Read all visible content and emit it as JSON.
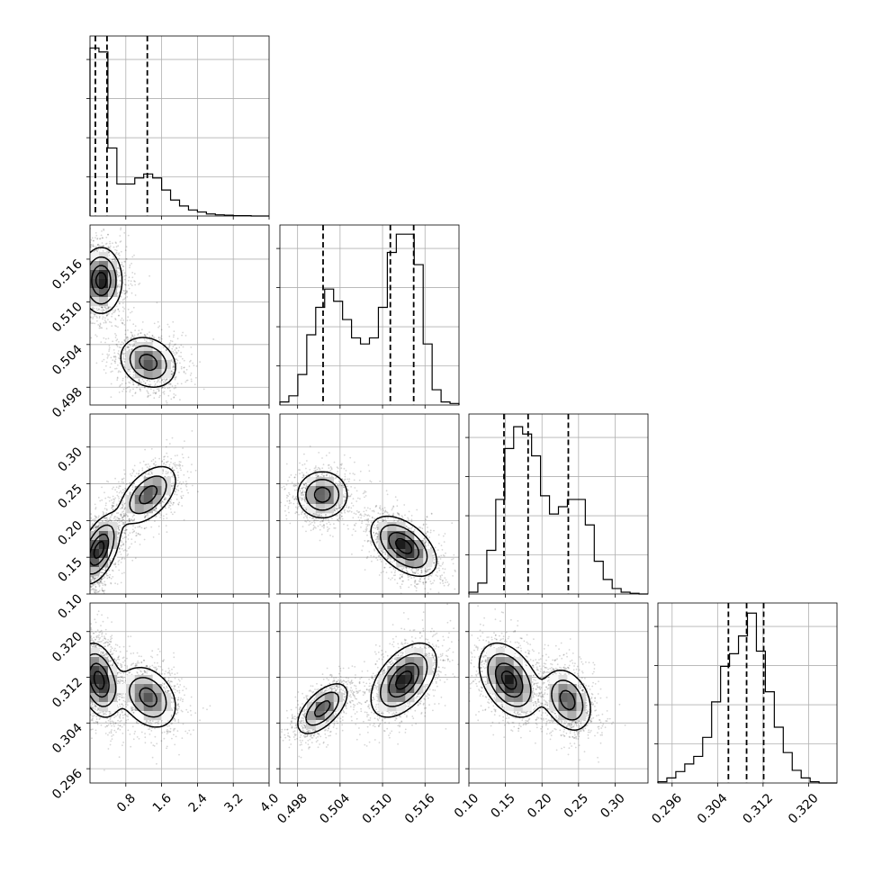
{
  "chart_data": {
    "type": "corner",
    "grid": true,
    "parameters": [
      {
        "range": [
          0.0,
          4.0
        ],
        "ticks": [
          0.8,
          1.6,
          2.4,
          3.2,
          4.0
        ],
        "tick_labels": [
          "0.8",
          "1.6",
          "2.4",
          "3.2",
          "4.0"
        ],
        "quantiles": [
          0.12,
          0.38,
          1.28
        ],
        "hist": [
          4.2,
          4.1,
          1.7,
          0.8,
          0.8,
          0.95,
          1.05,
          0.95,
          0.65,
          0.4,
          0.25,
          0.15,
          0.1,
          0.05,
          0.03,
          0.02,
          0.01,
          0.01,
          0.0,
          0.0
        ],
        "hist_max": 4.5
      },
      {
        "range": [
          0.4955,
          0.5208
        ],
        "ticks": [
          0.498,
          0.504,
          0.51,
          0.516
        ],
        "tick_labels": [
          "0.498",
          "0.504",
          "0.510",
          "0.516"
        ],
        "quantiles": [
          0.5016,
          0.5111,
          0.5144
        ],
        "hist": [
          0.1,
          0.3,
          1.0,
          2.3,
          3.2,
          3.8,
          3.4,
          2.8,
          2.2,
          2.0,
          2.2,
          3.2,
          5.0,
          5.6,
          5.6,
          4.6,
          2.0,
          0.5,
          0.1,
          0.05
        ],
        "hist_max": 5.9
      },
      {
        "range": [
          0.1,
          0.345
        ],
        "ticks": [
          0.1,
          0.15,
          0.2,
          0.25,
          0.3
        ],
        "tick_labels": [
          "0.10",
          "0.15",
          "0.20",
          "0.25",
          "0.30"
        ],
        "quantiles": [
          0.148,
          0.181,
          0.236
        ],
        "hist": [
          0.05,
          0.3,
          1.2,
          2.6,
          4.0,
          4.6,
          4.4,
          3.8,
          2.7,
          2.2,
          2.4,
          2.6,
          2.6,
          1.9,
          0.9,
          0.4,
          0.15,
          0.05,
          0.02,
          0.0
        ],
        "hist_max": 4.95
      },
      {
        "range": [
          0.2935,
          0.325
        ],
        "ticks": [
          0.296,
          0.304,
          0.312,
          0.32
        ],
        "tick_labels": [
          "0.296",
          "0.304",
          "0.312",
          "0.320"
        ],
        "quantiles": [
          0.3059,
          0.3091,
          0.3121
        ],
        "hist": [
          0.05,
          0.2,
          0.45,
          0.75,
          1.05,
          1.8,
          3.2,
          4.6,
          5.1,
          5.8,
          6.7,
          5.2,
          3.6,
          2.2,
          1.2,
          0.5,
          0.2,
          0.05,
          0.0,
          0.0
        ],
        "hist_max": 7.1
      }
    ],
    "pairs": [
      {
        "row": 1,
        "col": 0,
        "clusters": [
          {
            "mx": 0.25,
            "my": 0.513,
            "sx": 0.25,
            "sy": 0.0025,
            "rho": 0.0,
            "w": 0.55,
            "cut": 0.0
          },
          {
            "mx": 1.3,
            "my": 0.5015,
            "sx": 0.35,
            "sy": 0.002,
            "rho": -0.2,
            "w": 0.45
          }
        ]
      },
      {
        "row": 2,
        "col": 0,
        "clusters": [
          {
            "mx": 0.2,
            "my": 0.16,
            "sx": 0.25,
            "sy": 0.025,
            "rho": 0.5,
            "w": 0.55,
            "cut": 0.0
          },
          {
            "mx": 1.3,
            "my": 0.235,
            "sx": 0.35,
            "sy": 0.022,
            "rho": 0.5,
            "w": 0.45
          }
        ]
      },
      {
        "row": 2,
        "col": 1,
        "clusters": [
          {
            "mx": 0.5015,
            "my": 0.235,
            "sx": 0.002,
            "sy": 0.018,
            "rho": 0.0,
            "w": 0.45
          },
          {
            "mx": 0.513,
            "my": 0.165,
            "sx": 0.0025,
            "sy": 0.022,
            "rho": -0.5,
            "w": 0.55
          }
        ]
      },
      {
        "row": 3,
        "col": 0,
        "clusters": [
          {
            "mx": 0.2,
            "my": 0.3115,
            "sx": 0.25,
            "sy": 0.0035,
            "rho": -0.3,
            "w": 0.55,
            "cut": 0.0
          },
          {
            "mx": 1.3,
            "my": 0.3085,
            "sx": 0.35,
            "sy": 0.003,
            "rho": -0.3,
            "w": 0.45
          }
        ]
      },
      {
        "row": 3,
        "col": 1,
        "clusters": [
          {
            "mx": 0.5015,
            "my": 0.3065,
            "sx": 0.002,
            "sy": 0.0025,
            "rho": 0.6,
            "w": 0.45
          },
          {
            "mx": 0.513,
            "my": 0.3115,
            "sx": 0.0025,
            "sy": 0.0035,
            "rho": 0.5,
            "w": 0.55
          }
        ]
      },
      {
        "row": 3,
        "col": 2,
        "clusters": [
          {
            "mx": 0.155,
            "my": 0.3115,
            "sx": 0.022,
            "sy": 0.0035,
            "rho": -0.4,
            "w": 0.55
          },
          {
            "mx": 0.235,
            "my": 0.308,
            "sx": 0.018,
            "sy": 0.003,
            "rho": -0.3,
            "w": 0.45
          }
        ]
      }
    ]
  }
}
